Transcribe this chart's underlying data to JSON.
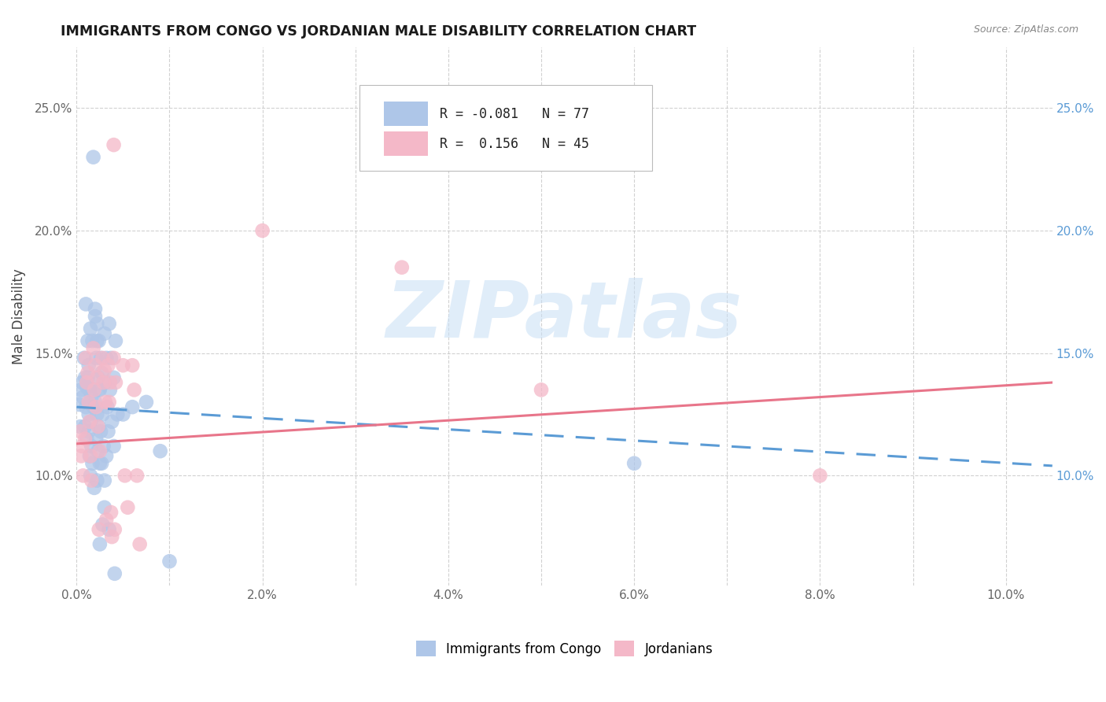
{
  "title": "IMMIGRANTS FROM CONGO VS JORDANIAN MALE DISABILITY CORRELATION CHART",
  "source": "Source: ZipAtlas.com",
  "ylabel": "Male Disability",
  "legend_label_blue": "Immigrants from Congo",
  "legend_label_pink": "Jordanians",
  "R_blue": -0.081,
  "N_blue": 77,
  "R_pink": 0.156,
  "N_pink": 45,
  "blue_color": "#aec6e8",
  "pink_color": "#f4b8c8",
  "blue_line_color": "#5b9bd5",
  "pink_line_color": "#e8758a",
  "blue_scatter": [
    [
      0.0003,
      0.129
    ],
    [
      0.0005,
      0.135
    ],
    [
      0.0006,
      0.138
    ],
    [
      0.0004,
      0.12
    ],
    [
      0.001,
      0.17
    ],
    [
      0.0012,
      0.155
    ],
    [
      0.0008,
      0.148
    ],
    [
      0.0009,
      0.14
    ],
    [
      0.0011,
      0.136
    ],
    [
      0.0007,
      0.132
    ],
    [
      0.001,
      0.128
    ],
    [
      0.0013,
      0.125
    ],
    [
      0.0009,
      0.12
    ],
    [
      0.0011,
      0.115
    ],
    [
      0.0015,
      0.16
    ],
    [
      0.0017,
      0.155
    ],
    [
      0.0013,
      0.145
    ],
    [
      0.0012,
      0.14
    ],
    [
      0.0014,
      0.135
    ],
    [
      0.0016,
      0.132
    ],
    [
      0.0018,
      0.128
    ],
    [
      0.0015,
      0.122
    ],
    [
      0.0013,
      0.118
    ],
    [
      0.0016,
      0.112
    ],
    [
      0.0014,
      0.108
    ],
    [
      0.0017,
      0.105
    ],
    [
      0.0015,
      0.1
    ],
    [
      0.0019,
      0.095
    ],
    [
      0.002,
      0.165
    ],
    [
      0.0022,
      0.155
    ],
    [
      0.0021,
      0.148
    ],
    [
      0.0023,
      0.14
    ],
    [
      0.0024,
      0.135
    ],
    [
      0.002,
      0.13
    ],
    [
      0.0022,
      0.125
    ],
    [
      0.0024,
      0.12
    ],
    [
      0.0021,
      0.115
    ],
    [
      0.0023,
      0.11
    ],
    [
      0.0025,
      0.105
    ],
    [
      0.0022,
      0.098
    ],
    [
      0.0018,
      0.23
    ],
    [
      0.002,
      0.168
    ],
    [
      0.0022,
      0.162
    ],
    [
      0.0024,
      0.155
    ],
    [
      0.0026,
      0.148
    ],
    [
      0.0027,
      0.142
    ],
    [
      0.0025,
      0.135
    ],
    [
      0.0028,
      0.125
    ],
    [
      0.0026,
      0.118
    ],
    [
      0.0029,
      0.112
    ],
    [
      0.0027,
      0.105
    ],
    [
      0.003,
      0.098
    ],
    [
      0.0028,
      0.08
    ],
    [
      0.0025,
      0.072
    ],
    [
      0.003,
      0.158
    ],
    [
      0.0032,
      0.148
    ],
    [
      0.0031,
      0.138
    ],
    [
      0.0033,
      0.128
    ],
    [
      0.0034,
      0.118
    ],
    [
      0.0032,
      0.108
    ],
    [
      0.0035,
      0.162
    ],
    [
      0.0037,
      0.148
    ],
    [
      0.0036,
      0.135
    ],
    [
      0.0038,
      0.122
    ],
    [
      0.004,
      0.112
    ],
    [
      0.0035,
      0.078
    ],
    [
      0.0042,
      0.155
    ],
    [
      0.004,
      0.14
    ],
    [
      0.0044,
      0.125
    ],
    [
      0.0041,
      0.06
    ],
    [
      0.005,
      0.125
    ],
    [
      0.006,
      0.128
    ],
    [
      0.0075,
      0.13
    ],
    [
      0.009,
      0.11
    ],
    [
      0.01,
      0.065
    ],
    [
      0.06,
      0.105
    ],
    [
      0.003,
      0.087
    ]
  ],
  "pink_scatter": [
    [
      0.0004,
      0.118
    ],
    [
      0.0006,
      0.112
    ],
    [
      0.0005,
      0.108
    ],
    [
      0.0007,
      0.1
    ],
    [
      0.001,
      0.148
    ],
    [
      0.0012,
      0.142
    ],
    [
      0.0011,
      0.138
    ],
    [
      0.0013,
      0.13
    ],
    [
      0.0014,
      0.122
    ],
    [
      0.0009,
      0.115
    ],
    [
      0.0015,
      0.108
    ],
    [
      0.0016,
      0.098
    ],
    [
      0.0018,
      0.152
    ],
    [
      0.002,
      0.145
    ],
    [
      0.0022,
      0.14
    ],
    [
      0.0019,
      0.135
    ],
    [
      0.0021,
      0.128
    ],
    [
      0.0023,
      0.12
    ],
    [
      0.0025,
      0.11
    ],
    [
      0.0024,
      0.078
    ],
    [
      0.0028,
      0.148
    ],
    [
      0.003,
      0.143
    ],
    [
      0.0029,
      0.138
    ],
    [
      0.0031,
      0.13
    ],
    [
      0.0032,
      0.082
    ],
    [
      0.0034,
      0.145
    ],
    [
      0.0036,
      0.138
    ],
    [
      0.0035,
      0.13
    ],
    [
      0.0037,
      0.085
    ],
    [
      0.0038,
      0.075
    ],
    [
      0.004,
      0.148
    ],
    [
      0.0042,
      0.138
    ],
    [
      0.0041,
      0.078
    ],
    [
      0.005,
      0.145
    ],
    [
      0.0052,
      0.1
    ],
    [
      0.0055,
      0.087
    ],
    [
      0.006,
      0.145
    ],
    [
      0.0062,
      0.135
    ],
    [
      0.0065,
      0.1
    ],
    [
      0.0068,
      0.072
    ],
    [
      0.02,
      0.2
    ],
    [
      0.035,
      0.185
    ],
    [
      0.05,
      0.135
    ],
    [
      0.08,
      0.1
    ],
    [
      0.004,
      0.235
    ]
  ],
  "xlim": [
    0.0,
    0.105
  ],
  "ylim": [
    0.055,
    0.275
  ],
  "blue_trend_x": [
    0.0,
    0.105
  ],
  "blue_trend_y": [
    0.128,
    0.104
  ],
  "pink_trend_x": [
    0.0,
    0.105
  ],
  "pink_trend_y": [
    0.113,
    0.138
  ],
  "xtick_positions": [
    0.0,
    0.01,
    0.02,
    0.03,
    0.04,
    0.05,
    0.06,
    0.07,
    0.08,
    0.09,
    0.1
  ],
  "xtick_labels": [
    "0.0%",
    "",
    "2.0%",
    "",
    "4.0%",
    "",
    "6.0%",
    "",
    "8.0%",
    "",
    "10.0%"
  ],
  "ytick_positions": [
    0.1,
    0.15,
    0.2,
    0.25
  ],
  "ytick_labels": [
    "10.0%",
    "15.0%",
    "20.0%",
    "25.0%"
  ],
  "right_ytick_color": "#5b9bd5",
  "watermark_text": "ZIPatlas",
  "watermark_color": "#c8dff5"
}
